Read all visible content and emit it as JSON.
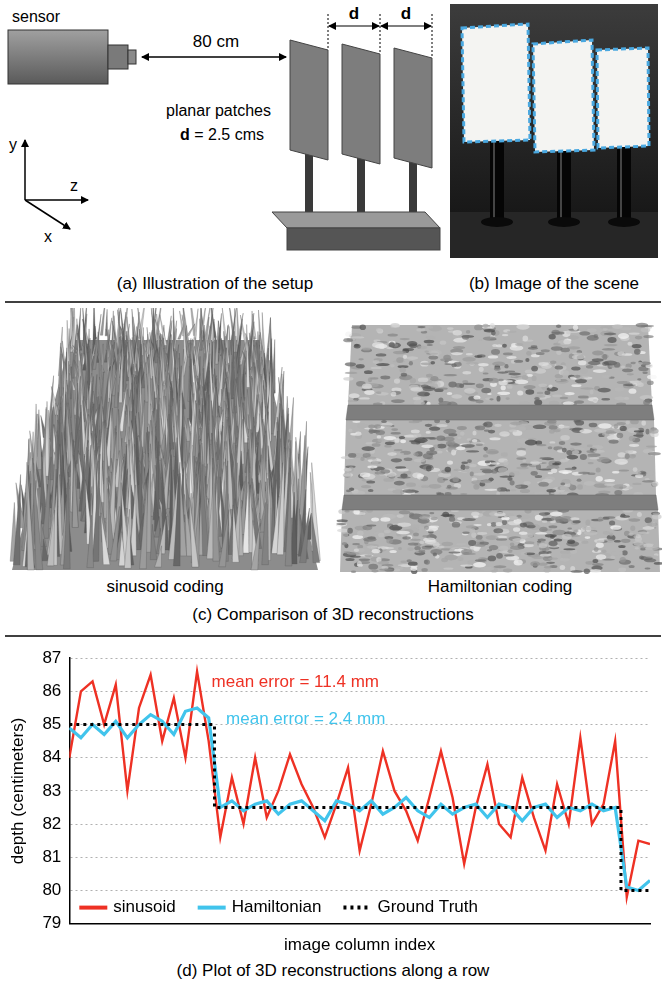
{
  "panels": {
    "a": {
      "caption": "(a) Illustration of the setup",
      "sensor": "sensor",
      "distance": "80 cm",
      "spacing": "d",
      "patches": "planar patches",
      "spacing_value": "d = 2.5 cms",
      "axes": [
        "y",
        "z",
        "x"
      ]
    },
    "b": {
      "caption": "(b) Image of the scene"
    },
    "c": {
      "caption": "(c) Comparison of 3D reconstructions",
      "views": [
        "sinusoid coding",
        "Hamiltonian coding"
      ]
    },
    "d": {
      "caption": "(d) Plot of 3D reconstructions along a row"
    }
  },
  "chart_data": {
    "type": "line",
    "xlabel": "image column index",
    "ylabel": "depth (centimeters)",
    "x": [
      0,
      2,
      4,
      6,
      8,
      10,
      12,
      14,
      16,
      18,
      20,
      22,
      24,
      26,
      28,
      30,
      32,
      34,
      36,
      38,
      40,
      42,
      44,
      46,
      48,
      50,
      52,
      54,
      56,
      58,
      60,
      62,
      64,
      66,
      68,
      70,
      72,
      74,
      76,
      78,
      80,
      82,
      84,
      86,
      88,
      90,
      92,
      94,
      96,
      98,
      100
    ],
    "xlim": [
      0,
      100
    ],
    "ylim": [
      79,
      87
    ],
    "yticks": [
      79,
      80,
      81,
      82,
      83,
      84,
      85,
      86,
      87
    ],
    "grid": true,
    "legend": "bottom left",
    "tick_labels": "y",
    "series": [
      {
        "name": "sinusoid",
        "color": "#ee3124",
        "values": [
          84.0,
          86.0,
          86.3,
          85.0,
          86.2,
          83.0,
          85.5,
          86.5,
          84.5,
          85.8,
          84.0,
          86.6,
          84.5,
          81.6,
          83.4,
          82.0,
          84.0,
          82.2,
          83.0,
          84.1,
          83.2,
          82.5,
          81.6,
          82.6,
          83.7,
          81.2,
          82.6,
          84.2,
          83.0,
          82.4,
          81.5,
          82.8,
          84.2,
          82.8,
          80.8,
          82.5,
          83.8,
          82.0,
          81.6,
          83.4,
          82.2,
          81.2,
          83.2,
          82.0,
          84.6,
          82.0,
          82.6,
          84.5,
          79.8,
          81.5,
          81.4
        ]
      },
      {
        "name": "Hamiltonian",
        "color": "#41c4ec",
        "values": [
          84.9,
          84.6,
          85.0,
          84.7,
          85.1,
          84.6,
          85.0,
          85.3,
          85.1,
          84.7,
          85.4,
          85.5,
          85.2,
          82.5,
          82.7,
          82.4,
          82.6,
          82.7,
          82.3,
          82.6,
          82.7,
          82.4,
          82.1,
          82.7,
          82.6,
          82.4,
          82.7,
          82.3,
          82.5,
          82.8,
          82.4,
          82.2,
          82.6,
          82.3,
          82.5,
          82.6,
          82.2,
          82.6,
          82.5,
          82.1,
          82.5,
          82.6,
          82.2,
          82.5,
          82.4,
          82.6,
          82.4,
          82.5,
          80.1,
          80.0,
          80.3
        ]
      },
      {
        "name": "Ground Truth",
        "color": "#000000",
        "line_style": "dotted",
        "x": [
          0,
          25,
          25,
          95,
          95,
          100
        ],
        "values": [
          85,
          85,
          82.5,
          82.5,
          80,
          80
        ]
      }
    ],
    "annotations": [
      {
        "text": "mean error = 11.4 mm",
        "color": "#ee3124"
      },
      {
        "text": "mean error = 2.4 mm",
        "color": "#41c4ec"
      }
    ]
  }
}
